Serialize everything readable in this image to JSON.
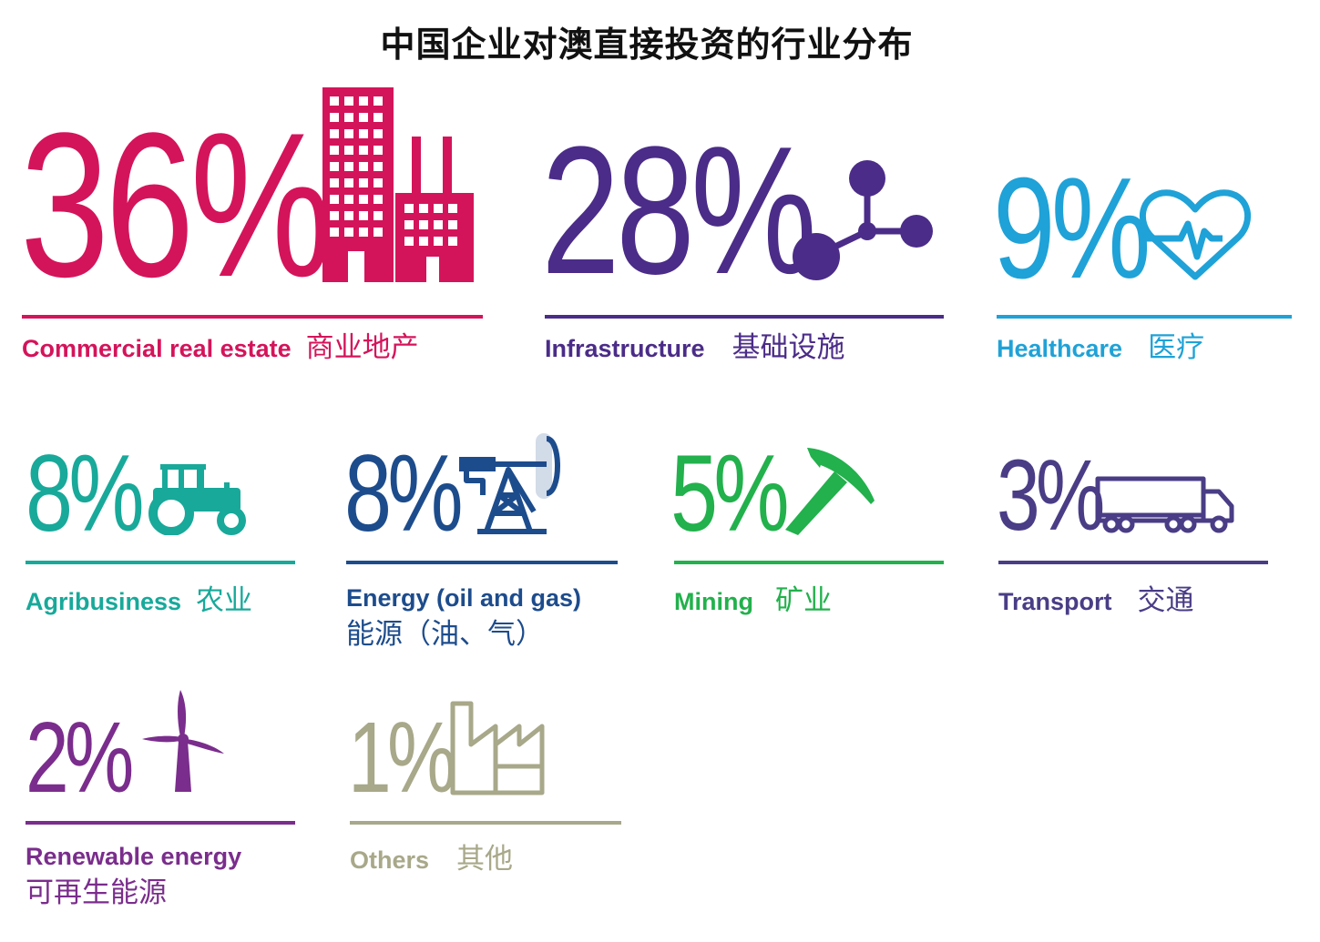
{
  "title": "中国企业对澳直接投资的行业分布",
  "chart_data": {
    "type": "table",
    "title": "中国企业对澳直接投资的行业分布",
    "unit": "%",
    "categories": [
      {
        "en": "Commercial real estate",
        "zh": "商业地产",
        "value": 36,
        "display": "36%",
        "color": "#d4145a",
        "icon": "buildings-icon"
      },
      {
        "en": "Infrastructure",
        "zh": "基础设施",
        "value": 28,
        "display": "28%",
        "color": "#4b2c88",
        "icon": "network-nodes-icon"
      },
      {
        "en": "Healthcare",
        "zh": "医疗",
        "value": 9,
        "display": "9%",
        "color": "#1fa2d7",
        "icon": "heart-pulse-icon"
      },
      {
        "en": "Agribusiness",
        "zh": "农业",
        "value": 8,
        "display": "8%",
        "color": "#18a99a",
        "icon": "tractor-icon"
      },
      {
        "en": "Energy (oil and gas)",
        "zh": "能源（油、气）",
        "value": 8,
        "display": "8%",
        "color": "#1d4c8c",
        "icon": "oil-pump-icon"
      },
      {
        "en": "Mining",
        "zh": "矿业",
        "value": 5,
        "display": "5%",
        "color": "#22b14c",
        "icon": "pickaxe-icon"
      },
      {
        "en": "Transport",
        "zh": "交通",
        "value": 3,
        "display": "3%",
        "color": "#4a3d86",
        "icon": "truck-icon"
      },
      {
        "en": "Renewable energy",
        "zh": "可再生能源",
        "value": 2,
        "display": "2%",
        "color": "#7a2d8c",
        "icon": "wind-turbine-icon"
      },
      {
        "en": "Others",
        "zh": "其他",
        "value": 1,
        "display": "1%",
        "color": "#a8a88a",
        "icon": "factory-icon"
      }
    ]
  }
}
